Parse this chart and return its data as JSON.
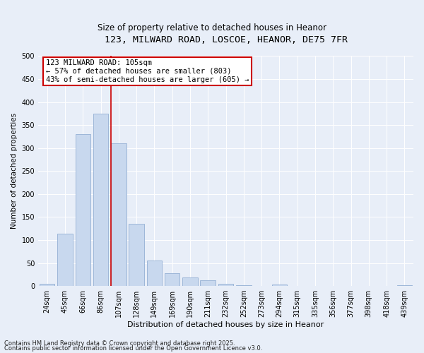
{
  "title1": "123, MILWARD ROAD, LOSCOE, HEANOR, DE75 7FR",
  "title2": "Size of property relative to detached houses in Heanor",
  "xlabel": "Distribution of detached houses by size in Heanor",
  "ylabel": "Number of detached properties",
  "categories": [
    "24sqm",
    "45sqm",
    "66sqm",
    "86sqm",
    "107sqm",
    "128sqm",
    "149sqm",
    "169sqm",
    "190sqm",
    "211sqm",
    "232sqm",
    "252sqm",
    "273sqm",
    "294sqm",
    "315sqm",
    "335sqm",
    "356sqm",
    "377sqm",
    "398sqm",
    "418sqm",
    "439sqm"
  ],
  "values": [
    5,
    113,
    330,
    375,
    310,
    135,
    55,
    28,
    18,
    12,
    5,
    2,
    0,
    3,
    0,
    0,
    0,
    0,
    0,
    0,
    2
  ],
  "bar_color": "#c8d8ee",
  "bar_edge_color": "#93afd4",
  "vline_index": 4,
  "vline_color": "#cc0000",
  "annotation_text": "123 MILWARD ROAD: 105sqm\n← 57% of detached houses are smaller (803)\n43% of semi-detached houses are larger (605) →",
  "annotation_box_facecolor": "#ffffff",
  "annotation_box_edgecolor": "#cc0000",
  "ylim": [
    0,
    500
  ],
  "yticks": [
    0,
    50,
    100,
    150,
    200,
    250,
    300,
    350,
    400,
    450,
    500
  ],
  "footer1": "Contains HM Land Registry data © Crown copyright and database right 2025.",
  "footer2": "Contains public sector information licensed under the Open Government Licence v3.0.",
  "bg_color": "#e8eef8",
  "plot_bg_color": "#e8eef8",
  "grid_color": "#ffffff",
  "title1_fontsize": 9.5,
  "title2_fontsize": 8.5,
  "xlabel_fontsize": 8,
  "ylabel_fontsize": 7.5,
  "tick_fontsize": 7,
  "footer_fontsize": 6,
  "annotation_fontsize": 7.5
}
